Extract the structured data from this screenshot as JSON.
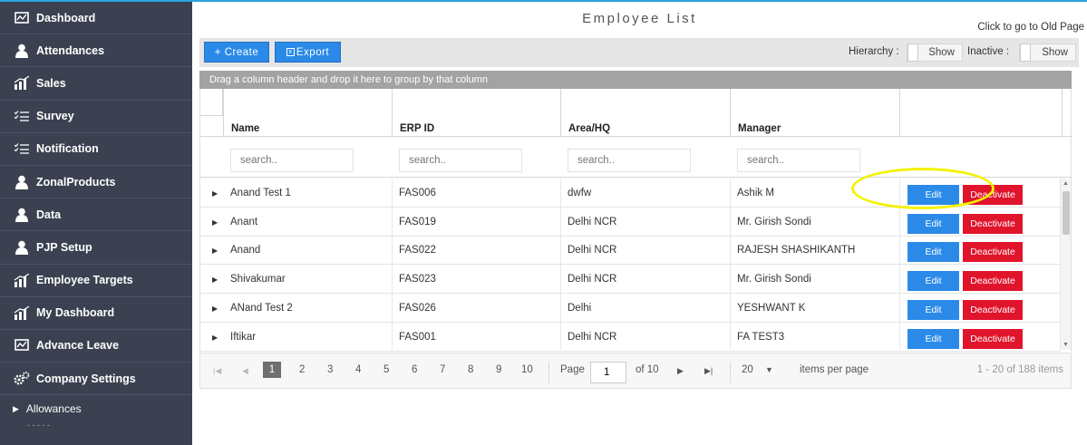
{
  "sidebar": {
    "items": [
      {
        "label": "Dashboard",
        "icon": "monitor-icon"
      },
      {
        "label": "Attendances",
        "icon": "user-icon"
      },
      {
        "label": "Sales",
        "icon": "chart-icon"
      },
      {
        "label": "Survey",
        "icon": "checklist-icon"
      },
      {
        "label": "Notification",
        "icon": "checklist-icon"
      },
      {
        "label": "ZonalProducts",
        "icon": "user-icon"
      },
      {
        "label": "Data",
        "icon": "user-icon"
      },
      {
        "label": "PJP Setup",
        "icon": "user-icon"
      },
      {
        "label": "Employee Targets",
        "icon": "chart-icon"
      },
      {
        "label": "My Dashboard",
        "icon": "chart-icon"
      },
      {
        "label": "Advance Leave",
        "icon": "monitor-icon"
      },
      {
        "label": "Company Settings",
        "icon": "gears-icon"
      }
    ],
    "sub_item": "Allowances"
  },
  "header": {
    "title": "Employee List",
    "old_page_link": "Click to go to Old Page"
  },
  "toolbar": {
    "create_label": "+ Create",
    "export_label": "Export",
    "hierarchy_label": "Hierarchy :",
    "hierarchy_toggle": "Show",
    "inactive_label": "Inactive :",
    "inactive_toggle": "Show"
  },
  "group_hint": "Drag a column header and drop it here to group by that column",
  "grid": {
    "columns": [
      "Name",
      "ERP ID",
      "Area/HQ",
      "Manager"
    ],
    "search_placeholder": "search..",
    "edit_label": "Edit",
    "deactivate_label": "Deactivate",
    "rows": [
      {
        "name": "Anand Test 1",
        "erp": "FAS006",
        "area": "dwfw",
        "manager": "Ashik M"
      },
      {
        "name": "Anant",
        "erp": "FAS019",
        "area": "Delhi NCR",
        "manager": "Mr. Girish Sondi"
      },
      {
        "name": "Anand",
        "erp": "FAS022",
        "area": "Delhi NCR",
        "manager": "RAJESH SHASHIKANTH"
      },
      {
        "name": "Shivakumar",
        "erp": "FAS023",
        "area": "Delhi NCR",
        "manager": "Mr. Girish Sondi"
      },
      {
        "name": "ANand Test 2",
        "erp": "FAS026",
        "area": "Delhi",
        "manager": "YESHWANT K"
      },
      {
        "name": "Iftikar",
        "erp": "FAS001",
        "area": "Delhi NCR",
        "manager": "FA TEST3"
      }
    ]
  },
  "pager": {
    "pages": [
      "1",
      "2",
      "3",
      "4",
      "5",
      "6",
      "7",
      "8",
      "9",
      "10"
    ],
    "current_page": "1",
    "page_label": "Page",
    "of_label": "of 10",
    "page_size": "20",
    "per_page_label": "items per page",
    "summary": "1 - 20 of 188 items"
  },
  "colors": {
    "sidebar_bg": "#3b4150",
    "primary": "#2b8ae8",
    "danger": "#e0142b",
    "highlight": "#f4f200",
    "top_border": "#29a3dc"
  }
}
